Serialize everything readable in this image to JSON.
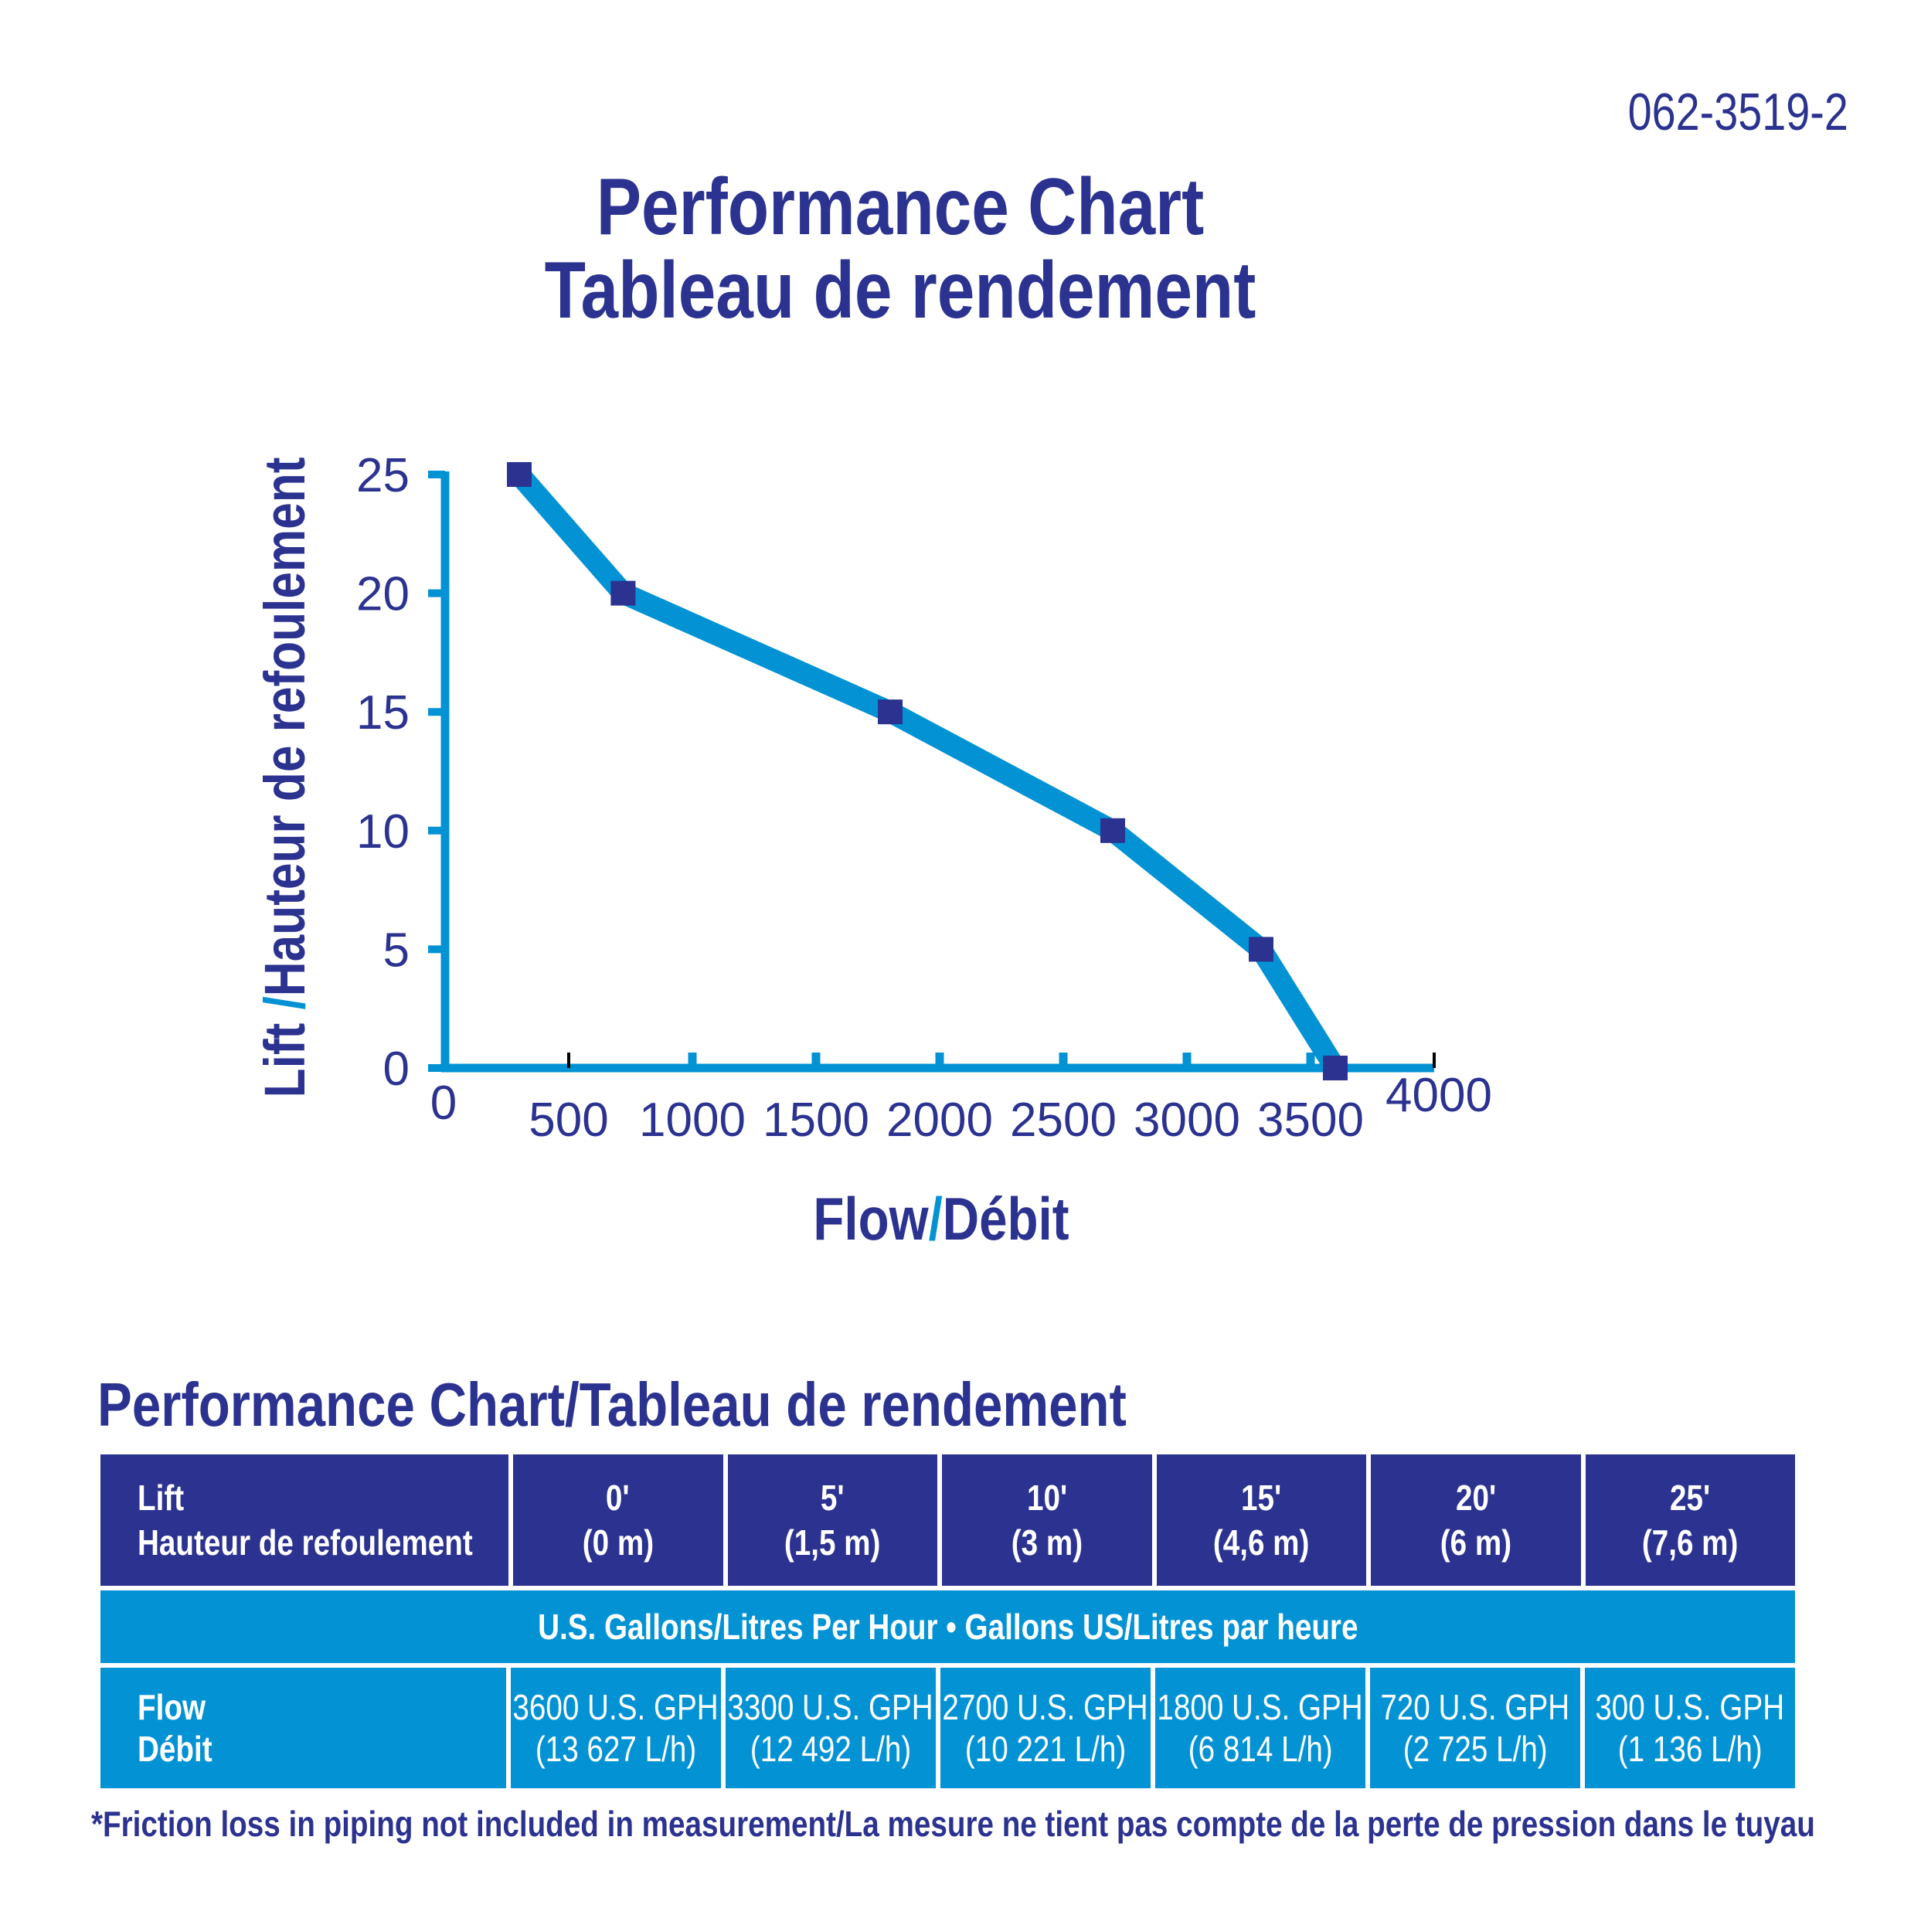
{
  "part_number": "062-3519-2",
  "title": {
    "line1": "Performance Chart",
    "line2": "Tableau de rendement"
  },
  "colors": {
    "navy": "#2b3290",
    "blue": "#0393d4"
  },
  "chart_data": {
    "type": "line",
    "title": "Performance Chart / Tableau de rendement",
    "ylabel_en": "Lift",
    "ylabel_sep": "/",
    "ylabel_fr": "Hauteur de refoulement",
    "xlabel_en": "Flow",
    "xlabel_sep": "/",
    "xlabel_fr": "Débit",
    "x_ticks": [
      "0",
      "500",
      "1000",
      "1500",
      "2000",
      "2500",
      "3000",
      "3500",
      "4000"
    ],
    "y_ticks": [
      "0",
      "5",
      "10",
      "15",
      "20",
      "25"
    ],
    "xlim": [
      0,
      4000
    ],
    "ylim": [
      0,
      25
    ],
    "x": [
      300,
      720,
      1800,
      2700,
      3300,
      3600
    ],
    "y": [
      25,
      20,
      15,
      10,
      5,
      0
    ]
  },
  "table": {
    "title": "Performance Chart/Tableau de rendement",
    "lift_label": [
      "Lift",
      "Hauteur de refoulement"
    ],
    "lift_values": [
      {
        "ft": "0'",
        "m": "(0 m)"
      },
      {
        "ft": "5'",
        "m": "(1,5 m)"
      },
      {
        "ft": "10'",
        "m": "(3 m)"
      },
      {
        "ft": "15'",
        "m": "(4,6 m)"
      },
      {
        "ft": "20'",
        "m": "(6 m)"
      },
      {
        "ft": "25'",
        "m": "(7,6 m)"
      }
    ],
    "band": "U.S. Gallons/Litres Per Hour • Gallons US/Litres par heure",
    "flow_label": [
      "Flow",
      "Débit"
    ],
    "flow_values": [
      {
        "gph": "3600 U.S. GPH",
        "lh": "(13 627 L/h)"
      },
      {
        "gph": "3300 U.S. GPH",
        "lh": "(12 492 L/h)"
      },
      {
        "gph": "2700 U.S. GPH",
        "lh": "(10 221 L/h)"
      },
      {
        "gph": "1800 U.S. GPH",
        "lh": "(6 814 L/h)"
      },
      {
        "gph": "720 U.S. GPH",
        "lh": "(2 725 L/h)"
      },
      {
        "gph": "300 U.S. GPH",
        "lh": "(1 136 L/h)"
      }
    ]
  },
  "footnote": "*Friction loss in piping not included in measurement/La mesure ne tient pas compte de la perte de pression dans le tuyau"
}
